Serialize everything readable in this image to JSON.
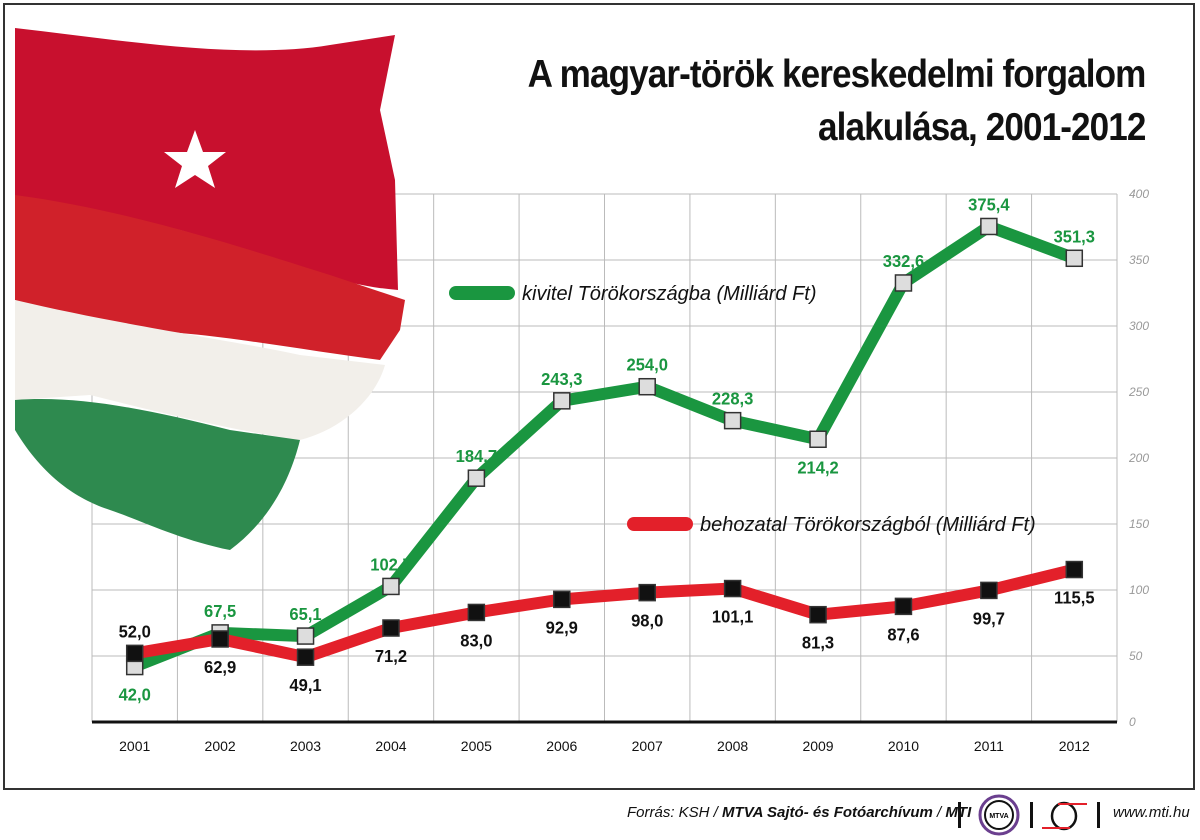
{
  "title": {
    "line1": "A magyar-török kereskedelmi forgalom",
    "line2": "alakulása, 2001-2012"
  },
  "chart_data": {
    "type": "line",
    "title": "A magyar-török kereskedelmi forgalom alakulása, 2001-2012",
    "x": [
      "2001",
      "2002",
      "2003",
      "2004",
      "2005",
      "2006",
      "2007",
      "2008",
      "2009",
      "2010",
      "2011",
      "2012"
    ],
    "ylim": [
      0,
      400
    ],
    "yticks": [
      "0",
      "50",
      "100",
      "150",
      "200",
      "250",
      "300",
      "350",
      "400"
    ],
    "grid": true,
    "series": [
      {
        "name": "kivitel Törökországba (Milliárd Ft)",
        "color": "#1a9640",
        "marker_color": "#dddddd",
        "values": [
          42.0,
          67.5,
          65.1,
          102.7,
          184.7,
          243.3,
          254.0,
          228.3,
          214.2,
          332.6,
          375.4,
          351.3
        ],
        "labels": [
          "42,0",
          "67,5",
          "65,1",
          "102,7",
          "184,7",
          "243,3",
          "254,0",
          "228,3",
          "214,2",
          "332,6",
          "375,4",
          "351,3"
        ]
      },
      {
        "name": "behozatal Törökországból (Milliárd Ft)",
        "color": "#e3202a",
        "marker_color": "#111111",
        "values": [
          52.0,
          62.9,
          49.1,
          71.2,
          83.0,
          92.9,
          98.0,
          101.1,
          81.3,
          87.6,
          99.7,
          115.5
        ],
        "labels": [
          "52,0",
          "62,9",
          "49,1",
          "71,2",
          "83,0",
          "92,9",
          "98,0",
          "101,1",
          "81,3",
          "87,6",
          "99,7",
          "115,5"
        ]
      }
    ]
  },
  "footer": {
    "source_prefix": "Forrás: KSH / ",
    "source_bold": "MTVA Sajtó- és Fotóarchívum",
    "sep": " / ",
    "mti": "MTI",
    "logo_mtva": "MTVA",
    "url": "www.mti.hu"
  }
}
